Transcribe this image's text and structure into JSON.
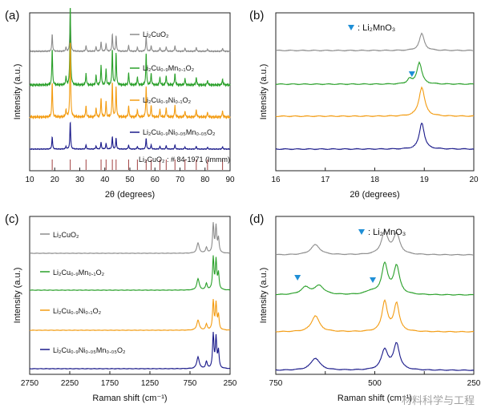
{
  "watermark": "材料科学与工程",
  "colors": {
    "Li2CuO2": "#8c8c8c",
    "Li2Cu0.9Mn0.1O2": "#2aa02a",
    "Li2Cu0.9Ni0.1O2": "#f39c12",
    "Li2Cu0.9Ni0.05Mn0.05O2": "#1a1a8a",
    "marker": "#1f8fd6",
    "ref": "#a04040"
  },
  "chart_data": [
    {
      "panel": "(a)",
      "type": "line",
      "xlabel": "2θ (degrees)",
      "ylabel": "Intensity (a.u.)",
      "xlim": [
        10,
        90
      ],
      "xticks": [
        "10",
        "20",
        "30",
        "40",
        "50",
        "60",
        "70",
        "80",
        "90"
      ],
      "legend": [
        {
          "text": "Li₂CuO₂",
          "color_key": "Li2CuO2"
        },
        {
          "text": "Li₂Cu₀.₉Mn₀.₁O₂",
          "color_key": "Li2Cu0.9Mn0.1O2"
        },
        {
          "text": "Li₂Cu₀.₉Ni₀.₁O₂",
          "color_key": "Li2Cu0.9Ni0.1O2"
        },
        {
          "text": "Li₂Cu₀.₉Ni₀.₀₅Mn₀.₀₅O₂",
          "color_key": "Li2Cu0.9Ni0.05Mn0.05O2"
        }
      ],
      "reference_label": "Li₂CuO₂ : # 84-1971 (Immm)",
      "peaks": [
        [
          19.0,
          0.45
        ],
        [
          24.5,
          0.1
        ],
        [
          26.2,
          1.0
        ],
        [
          32.5,
          0.15
        ],
        [
          36.5,
          0.12
        ],
        [
          38.5,
          0.25
        ],
        [
          40.5,
          0.2
        ],
        [
          43.0,
          0.45
        ],
        [
          44.5,
          0.4
        ],
        [
          49.5,
          0.15
        ],
        [
          53.0,
          0.1
        ],
        [
          56.5,
          0.4
        ],
        [
          58.5,
          0.15
        ],
        [
          62.0,
          0.1
        ],
        [
          64.5,
          0.12
        ],
        [
          68.0,
          0.15
        ],
        [
          72.0,
          0.08
        ],
        [
          76.5,
          0.1
        ],
        [
          81.0,
          0.06
        ],
        [
          87.0,
          0.08
        ]
      ],
      "ref_peaks": [
        19.0,
        26.2,
        32.5,
        38.5,
        40.5,
        43.0,
        44.5,
        49.5,
        53.0,
        56.5,
        58.5,
        62.0,
        64.5,
        68.0,
        72.0,
        76.5,
        81.0,
        87.0
      ]
    },
    {
      "panel": "(b)",
      "type": "line",
      "xlabel": "2θ (degrees)",
      "ylabel": "Intensity (a.u.)",
      "xlim": [
        16,
        20
      ],
      "xticks": [
        "16",
        "17",
        "18",
        "19",
        "20"
      ],
      "annotation": ": Li₂MnO₃",
      "peaks_by_series": {
        "Li2CuO2": [
          [
            18.95,
            0.35,
            0.06
          ]
        ],
        "Li2Cu0.9Mn0.1O2": [
          [
            18.9,
            0.45,
            0.06
          ],
          [
            18.7,
            0.1,
            0.05
          ]
        ],
        "Li2Cu0.9Ni0.1O2": [
          [
            18.95,
            0.6,
            0.07
          ]
        ],
        "Li2Cu0.9Ni0.05Mn0.05O2": [
          [
            18.95,
            0.55,
            0.06
          ]
        ]
      },
      "marker_x": 18.75
    },
    {
      "panel": "(c)",
      "type": "line",
      "xlabel": "Raman shift (cm⁻¹)",
      "ylabel": "Intensity (a.u.)",
      "xlim": [
        2750,
        250
      ],
      "xticks": [
        "2750",
        "2250",
        "1750",
        "1250",
        "750",
        "250"
      ],
      "legend": [
        {
          "text": "Li₂CuO₂",
          "color_key": "Li2CuO2"
        },
        {
          "text": "Li₂Cu₀.₉Mn₀.₁O₂",
          "color_key": "Li2Cu0.9Mn0.1O2"
        },
        {
          "text": "Li₂Cu₀.₉Ni₀.₁O₂",
          "color_key": "Li2Cu0.9Ni0.1O2"
        },
        {
          "text": "Li₂Cu₀.₉Ni₀.₀₅Mn₀.₀₅O₂",
          "color_key": "Li2Cu0.9Ni0.05Mn0.05O2"
        }
      ],
      "peaks": [
        [
          650,
          0.35,
          18
        ],
        [
          545,
          0.2,
          12
        ],
        [
          460,
          1.0,
          10
        ],
        [
          425,
          0.9,
          10
        ],
        [
          395,
          0.5,
          10
        ]
      ]
    },
    {
      "panel": "(d)",
      "type": "line",
      "xlabel": "Raman shift (cm⁻¹)",
      "ylabel": "Intensity (a.u.)",
      "xlim": [
        750,
        250
      ],
      "xticks": [
        "750",
        "",
        "500",
        "",
        "250"
      ],
      "annotation": ": Li₂MnO₃",
      "peaks_by_series": {
        "Li2CuO2": [
          [
            650,
            0.25,
            14
          ],
          [
            475,
            0.55,
            10
          ],
          [
            445,
            0.5,
            10
          ]
        ],
        "Li2Cu0.9Mn0.1O2": [
          [
            675,
            0.18,
            14
          ],
          [
            640,
            0.22,
            14
          ],
          [
            510,
            0.08,
            15
          ],
          [
            475,
            0.75,
            9
          ],
          [
            445,
            0.7,
            9
          ]
        ],
        "Li2Cu0.9Ni0.1O2": [
          [
            650,
            0.4,
            12
          ],
          [
            475,
            0.75,
            8
          ],
          [
            445,
            0.7,
            8
          ]
        ],
        "Li2Cu0.9Ni0.05Mn0.05O2": [
          [
            650,
            0.3,
            14
          ],
          [
            475,
            0.5,
            10
          ],
          [
            445,
            0.65,
            9
          ]
        ]
      },
      "marker_xs": [
        695,
        505
      ]
    }
  ]
}
